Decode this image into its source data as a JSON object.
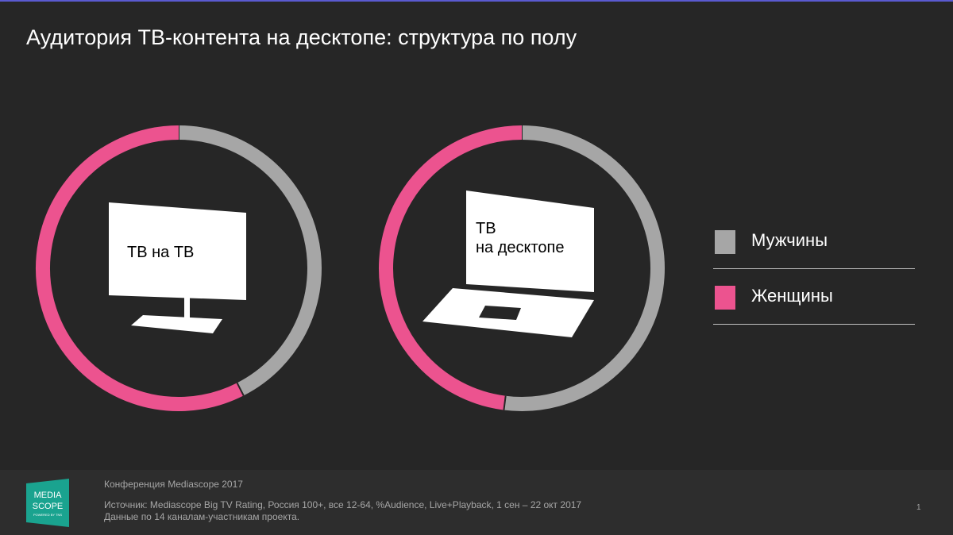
{
  "title": "Аудитория ТВ-контента на десктопе: структура по полу",
  "chart_data": [
    {
      "type": "pie",
      "donut": true,
      "label": "ТВ на ТВ",
      "categories": [
        "Мужчины",
        "Женщины"
      ],
      "values": [
        42.5,
        57.5
      ]
    },
    {
      "type": "pie",
      "donut": true,
      "label_line1": "ТВ",
      "label_line2": "на десктопе",
      "categories": [
        "Мужчины",
        "Женщины"
      ],
      "values": [
        52,
        48
      ]
    }
  ],
  "legend": [
    {
      "label": "Мужчины",
      "color": "#A6A6A6"
    },
    {
      "label": "Женщины",
      "color": "#EC538F"
    }
  ],
  "footer": {
    "logo_text": "MEDIA SCOPE POWERED BY TNS",
    "conference": "Конференция Mediascope 2017",
    "source": "Источник: Mediascope Big TV Rating, Россия 100+, все 12-64, %Audience, Live+Playback, 1 сен – 22 окт 2017",
    "note": "Данные по 14 каналам-участникам проекта.",
    "page": "1"
  }
}
